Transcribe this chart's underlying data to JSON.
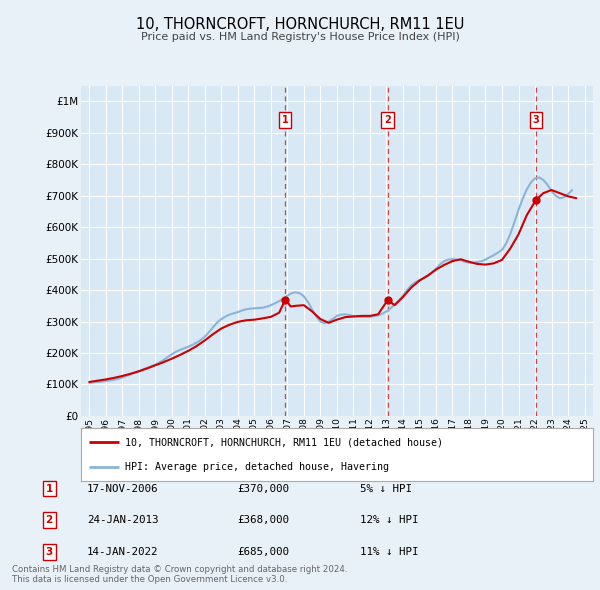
{
  "title": "10, THORNCROFT, HORNCHURCH, RM11 1EU",
  "subtitle": "Price paid vs. HM Land Registry's House Price Index (HPI)",
  "background_color": "#e8f0f8",
  "plot_bg_color": "#d8e8f4",
  "ylabel_ticks": [
    "£0",
    "£100K",
    "£200K",
    "£300K",
    "£400K",
    "£500K",
    "£600K",
    "£700K",
    "£800K",
    "£900K",
    "£1M"
  ],
  "ytick_values": [
    0,
    100000,
    200000,
    300000,
    400000,
    500000,
    600000,
    700000,
    800000,
    900000,
    1000000
  ],
  "ylim": [
    0,
    1050000
  ],
  "hpi_color": "#8ab4d8",
  "price_color": "#cc0000",
  "vline_color": "#cc3333",
  "transactions": [
    {
      "label": "1",
      "date_str": "17-NOV-2006",
      "price": 370000,
      "pct": "5%",
      "x_year": 2006.88
    },
    {
      "label": "2",
      "date_str": "24-JAN-2013",
      "price": 368000,
      "pct": "12%",
      "x_year": 2013.07
    },
    {
      "label": "3",
      "date_str": "14-JAN-2022",
      "price": 685000,
      "pct": "11%",
      "x_year": 2022.04
    }
  ],
  "legend_line1": "10, THORNCROFT, HORNCHURCH, RM11 1EU (detached house)",
  "legend_line2": "HPI: Average price, detached house, Havering",
  "footer": "Contains HM Land Registry data © Crown copyright and database right 2024.\nThis data is licensed under the Open Government Licence v3.0.",
  "xlim_start": 1994.5,
  "xlim_end": 2025.5,
  "xtick_years": [
    1995,
    1996,
    1997,
    1998,
    1999,
    2000,
    2001,
    2002,
    2003,
    2004,
    2005,
    2006,
    2007,
    2008,
    2009,
    2010,
    2011,
    2012,
    2013,
    2014,
    2015,
    2016,
    2017,
    2018,
    2019,
    2020,
    2021,
    2022,
    2023,
    2024,
    2025
  ],
  "hpi_data_x": [
    1995.0,
    1995.25,
    1995.5,
    1995.75,
    1996.0,
    1996.25,
    1996.5,
    1996.75,
    1997.0,
    1997.25,
    1997.5,
    1997.75,
    1998.0,
    1998.25,
    1998.5,
    1998.75,
    1999.0,
    1999.25,
    1999.5,
    1999.75,
    2000.0,
    2000.25,
    2000.5,
    2000.75,
    2001.0,
    2001.25,
    2001.5,
    2001.75,
    2002.0,
    2002.25,
    2002.5,
    2002.75,
    2003.0,
    2003.25,
    2003.5,
    2003.75,
    2004.0,
    2004.25,
    2004.5,
    2004.75,
    2005.0,
    2005.25,
    2005.5,
    2005.75,
    2006.0,
    2006.25,
    2006.5,
    2006.75,
    2007.0,
    2007.25,
    2007.5,
    2007.75,
    2008.0,
    2008.25,
    2008.5,
    2008.75,
    2009.0,
    2009.25,
    2009.5,
    2009.75,
    2010.0,
    2010.25,
    2010.5,
    2010.75,
    2011.0,
    2011.25,
    2011.5,
    2011.75,
    2012.0,
    2012.25,
    2012.5,
    2012.75,
    2013.0,
    2013.25,
    2013.5,
    2013.75,
    2014.0,
    2014.25,
    2014.5,
    2014.75,
    2015.0,
    2015.25,
    2015.5,
    2015.75,
    2016.0,
    2016.25,
    2016.5,
    2016.75,
    2017.0,
    2017.25,
    2017.5,
    2017.75,
    2018.0,
    2018.25,
    2018.5,
    2018.75,
    2019.0,
    2019.25,
    2019.5,
    2019.75,
    2020.0,
    2020.25,
    2020.5,
    2020.75,
    2021.0,
    2021.25,
    2021.5,
    2021.75,
    2022.0,
    2022.25,
    2022.5,
    2022.75,
    2023.0,
    2023.25,
    2023.5,
    2023.75,
    2024.0,
    2024.25
  ],
  "hpi_data_y": [
    105000,
    107000,
    108000,
    109000,
    111000,
    113000,
    115000,
    118000,
    122000,
    127000,
    132000,
    137000,
    142000,
    148000,
    153000,
    158000,
    163000,
    170000,
    178000,
    187000,
    196000,
    204000,
    210000,
    215000,
    220000,
    226000,
    233000,
    241000,
    252000,
    266000,
    282000,
    297000,
    308000,
    316000,
    322000,
    326000,
    330000,
    335000,
    339000,
    341000,
    342000,
    343000,
    344000,
    347000,
    352000,
    358000,
    365000,
    373000,
    382000,
    390000,
    393000,
    390000,
    380000,
    362000,
    338000,
    316000,
    300000,
    295000,
    300000,
    308000,
    318000,
    322000,
    323000,
    321000,
    318000,
    316000,
    315000,
    315000,
    315000,
    317000,
    320000,
    325000,
    332000,
    342000,
    355000,
    367000,
    382000,
    400000,
    415000,
    425000,
    432000,
    438000,
    445000,
    455000,
    468000,
    482000,
    492000,
    497000,
    498000,
    497000,
    495000,
    490000,
    487000,
    487000,
    489000,
    492000,
    497000,
    504000,
    511000,
    519000,
    528000,
    548000,
    578000,
    615000,
    655000,
    690000,
    720000,
    742000,
    755000,
    758000,
    750000,
    735000,
    715000,
    700000,
    692000,
    695000,
    705000,
    718000
  ],
  "price_data_x": [
    1995.0,
    1995.5,
    1996.0,
    1996.5,
    1997.0,
    1997.5,
    1998.0,
    1998.5,
    1999.0,
    1999.5,
    2000.0,
    2000.5,
    2001.0,
    2001.5,
    2002.0,
    2002.5,
    2003.0,
    2003.5,
    2004.0,
    2004.5,
    2005.0,
    2005.5,
    2006.0,
    2006.5,
    2006.88,
    2007.2,
    2007.5,
    2008.0,
    2008.5,
    2009.0,
    2009.5,
    2010.0,
    2010.5,
    2011.0,
    2011.5,
    2012.0,
    2012.5,
    2013.07,
    2013.5,
    2014.0,
    2014.5,
    2015.0,
    2015.5,
    2016.0,
    2016.5,
    2017.0,
    2017.5,
    2018.0,
    2018.5,
    2019.0,
    2019.5,
    2020.0,
    2020.5,
    2021.0,
    2021.5,
    2022.04,
    2022.5,
    2023.0,
    2023.5,
    2024.0,
    2024.5
  ],
  "price_data_y": [
    108000,
    112000,
    116000,
    121000,
    127000,
    134000,
    142000,
    151000,
    161000,
    171000,
    182000,
    194000,
    207000,
    222000,
    240000,
    260000,
    278000,
    290000,
    299000,
    304000,
    306000,
    310000,
    315000,
    328000,
    370000,
    348000,
    350000,
    352000,
    332000,
    308000,
    296000,
    306000,
    314000,
    316000,
    318000,
    318000,
    323000,
    368000,
    352000,
    378000,
    408000,
    430000,
    446000,
    465000,
    480000,
    492000,
    498000,
    490000,
    483000,
    481000,
    485000,
    496000,
    532000,
    577000,
    638000,
    685000,
    708000,
    718000,
    708000,
    698000,
    692000
  ]
}
